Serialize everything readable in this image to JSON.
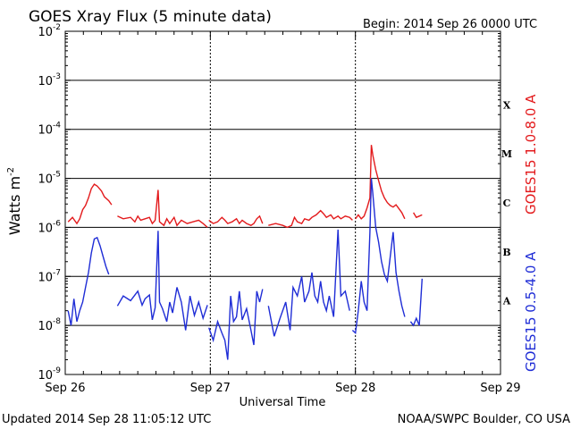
{
  "title": "GOES Xray Flux (5 minute data)",
  "begin_label": "Begin:  2014 Sep 26 0000 UTC",
  "updated_label": "Updated 2014 Sep 28 11:05:12 UTC",
  "credit_label": "NOAA/SWPC Boulder, CO USA",
  "colors": {
    "long_channel": "#e31a1c",
    "short_channel": "#1f2dd6",
    "grid": "#000000"
  },
  "chart_data": {
    "type": "line",
    "title": "GOES Xray Flux (5 minute data)",
    "xlabel": "Universal Time",
    "ylabel": "Watts m",
    "ylabel_superscript": "-2",
    "yscale": "log",
    "ylim": [
      1e-09,
      0.01
    ],
    "xlim": [
      "2014-09-26T00:00Z",
      "2014-09-29T00:00Z"
    ],
    "x_ticks": [
      "Sep 26",
      "Sep 27",
      "Sep 28",
      "Sep 29"
    ],
    "y_ticks": [
      {
        "base": "10",
        "exp": "-2"
      },
      {
        "base": "10",
        "exp": "-3"
      },
      {
        "base": "10",
        "exp": "-4"
      },
      {
        "base": "10",
        "exp": "-5"
      },
      {
        "base": "10",
        "exp": "-6"
      },
      {
        "base": "10",
        "exp": "-7"
      },
      {
        "base": "10",
        "exp": "-8"
      },
      {
        "base": "10",
        "exp": "-9"
      }
    ],
    "flare_classes": [
      {
        "label": "X",
        "flux": 0.000316
      },
      {
        "label": "M",
        "flux": 3.16e-05
      },
      {
        "label": "C",
        "flux": 3.16e-06
      },
      {
        "label": "B",
        "flux": 3.16e-07
      },
      {
        "label": "A",
        "flux": 3.16e-08
      }
    ],
    "gridlines_y": [
      0.001,
      0.0001,
      1e-05,
      1e-06,
      1e-07,
      1e-08
    ],
    "gridlines_x_dotted": [
      "Sep 27",
      "Sep 28"
    ],
    "series": [
      {
        "name": "GOES15 1.0-8.0 A",
        "color": "#e31a1c",
        "segments": [
          [
            [
              0.02,
              1.3e-06
            ],
            [
              0.05,
              1.6e-06
            ],
            [
              0.08,
              1.2e-06
            ],
            [
              0.1,
              1.5e-06
            ],
            [
              0.12,
              2.3e-06
            ],
            [
              0.14,
              2.8e-06
            ],
            [
              0.16,
              4e-06
            ],
            [
              0.18,
              6.2e-06
            ],
            [
              0.2,
              7.6e-06
            ],
            [
              0.22,
              7e-06
            ],
            [
              0.25,
              5.5e-06
            ],
            [
              0.27,
              4.2e-06
            ],
            [
              0.3,
              3.5e-06
            ],
            [
              0.32,
              2.9e-06
            ]
          ],
          [
            [
              0.36,
              1.7e-06
            ],
            [
              0.4,
              1.5e-06
            ],
            [
              0.45,
              1.6e-06
            ],
            [
              0.48,
              1.3e-06
            ],
            [
              0.5,
              1.7e-06
            ],
            [
              0.52,
              1.4e-06
            ],
            [
              0.55,
              1.5e-06
            ],
            [
              0.58,
              1.6e-06
            ],
            [
              0.6,
              1.2e-06
            ],
            [
              0.62,
              1.4e-06
            ],
            [
              0.64,
              5.8e-06
            ],
            [
              0.65,
              1.3e-06
            ],
            [
              0.68,
              1.1e-06
            ],
            [
              0.7,
              1.5e-06
            ],
            [
              0.72,
              1.2e-06
            ],
            [
              0.75,
              1.6e-06
            ],
            [
              0.77,
              1.1e-06
            ],
            [
              0.8,
              1.4e-06
            ],
            [
              0.84,
              1.2e-06
            ],
            [
              0.88,
              1.3e-06
            ],
            [
              0.92,
              1.4e-06
            ],
            [
              0.95,
              1.2e-06
            ],
            [
              0.98,
              1e-06
            ]
          ],
          [
            [
              0.99,
              1.4e-06
            ],
            [
              1.02,
              1.2e-06
            ],
            [
              1.05,
              1.3e-06
            ],
            [
              1.08,
              1.6e-06
            ],
            [
              1.1,
              1.4e-06
            ],
            [
              1.12,
              1.2e-06
            ],
            [
              1.15,
              1.3e-06
            ],
            [
              1.18,
              1.5e-06
            ],
            [
              1.2,
              1.2e-06
            ],
            [
              1.22,
              1.4e-06
            ],
            [
              1.25,
              1.2e-06
            ],
            [
              1.28,
              1.1e-06
            ],
            [
              1.3,
              1.2e-06
            ],
            [
              1.32,
              1.5e-06
            ],
            [
              1.34,
              1.7e-06
            ],
            [
              1.36,
              1.2e-06
            ]
          ],
          [
            [
              1.4,
              1.1e-06
            ],
            [
              1.45,
              1.2e-06
            ],
            [
              1.5,
              1.1e-06
            ],
            [
              1.53,
              1e-06
            ],
            [
              1.56,
              1.1e-06
            ],
            [
              1.58,
              1.6e-06
            ],
            [
              1.6,
              1.3e-06
            ],
            [
              1.63,
              1.2e-06
            ],
            [
              1.65,
              1.5e-06
            ],
            [
              1.68,
              1.4e-06
            ],
            [
              1.7,
              1.6e-06
            ],
            [
              1.73,
              1.8e-06
            ],
            [
              1.76,
              2.2e-06
            ],
            [
              1.78,
              1.9e-06
            ],
            [
              1.8,
              1.6e-06
            ],
            [
              1.83,
              1.8e-06
            ],
            [
              1.85,
              1.5e-06
            ],
            [
              1.88,
              1.7e-06
            ],
            [
              1.9,
              1.5e-06
            ],
            [
              1.93,
              1.7e-06
            ],
            [
              1.96,
              1.6e-06
            ],
            [
              1.98,
              1.4e-06
            ]
          ],
          [
            [
              2.0,
              1.5e-06
            ],
            [
              2.02,
              1.8e-06
            ],
            [
              2.04,
              1.5e-06
            ],
            [
              2.06,
              1.7e-06
            ],
            [
              2.08,
              2.5e-06
            ],
            [
              2.1,
              4e-06
            ],
            [
              2.11,
              4.8e-05
            ],
            [
              2.12,
              3e-05
            ],
            [
              2.14,
              1.5e-05
            ],
            [
              2.16,
              9e-06
            ],
            [
              2.18,
              5.5e-06
            ],
            [
              2.2,
              4e-06
            ],
            [
              2.22,
              3.2e-06
            ],
            [
              2.24,
              2.8e-06
            ],
            [
              2.26,
              2.6e-06
            ],
            [
              2.28,
              2.9e-06
            ],
            [
              2.3,
              2.4e-06
            ],
            [
              2.32,
              2e-06
            ],
            [
              2.34,
              1.5e-06
            ]
          ],
          [
            [
              2.4,
              2e-06
            ],
            [
              2.42,
              1.6e-06
            ],
            [
              2.44,
              1.7e-06
            ],
            [
              2.46,
              1.8e-06
            ]
          ]
        ]
      },
      {
        "name": "GOES15 0.5-4.0 A",
        "color": "#1f2dd6",
        "segments": [
          [
            [
              0.02,
              2e-08
            ],
            [
              0.04,
              1e-08
            ],
            [
              0.06,
              3.5e-08
            ],
            [
              0.08,
              1.2e-08
            ],
            [
              0.1,
              2e-08
            ],
            [
              0.12,
              3e-08
            ],
            [
              0.14,
              6e-08
            ],
            [
              0.16,
              1.2e-07
            ],
            [
              0.18,
              3e-07
            ],
            [
              0.2,
              5.8e-07
            ],
            [
              0.22,
              6.2e-07
            ],
            [
              0.24,
              4.2e-07
            ],
            [
              0.26,
              2.6e-07
            ],
            [
              0.28,
              1.6e-07
            ],
            [
              0.3,
              1.1e-07
            ]
          ],
          [
            [
              0.36,
              2.5e-08
            ],
            [
              0.4,
              4e-08
            ],
            [
              0.45,
              3.2e-08
            ],
            [
              0.5,
              5e-08
            ],
            [
              0.53,
              2.6e-08
            ],
            [
              0.55,
              3.5e-08
            ],
            [
              0.58,
              4.2e-08
            ],
            [
              0.6,
              1.3e-08
            ],
            [
              0.62,
              2.3e-08
            ],
            [
              0.64,
              8.5e-07
            ],
            [
              0.65,
              3e-08
            ],
            [
              0.67,
              2.2e-08
            ],
            [
              0.7,
              1.2e-08
            ],
            [
              0.72,
              3e-08
            ],
            [
              0.74,
              1.8e-08
            ],
            [
              0.77,
              6e-08
            ],
            [
              0.8,
              3e-08
            ],
            [
              0.83,
              8e-09
            ],
            [
              0.86,
              4e-08
            ],
            [
              0.89,
              1.6e-08
            ],
            [
              0.92,
              3e-08
            ],
            [
              0.95,
              1.4e-08
            ],
            [
              0.98,
              2.6e-08
            ]
          ],
          [
            [
              0.99,
              9e-09
            ],
            [
              1.02,
              5e-09
            ],
            [
              1.05,
              1.2e-08
            ],
            [
              1.08,
              7e-09
            ],
            [
              1.1,
              5e-09
            ],
            [
              1.12,
              2e-09
            ],
            [
              1.14,
              4e-08
            ],
            [
              1.16,
              1.2e-08
            ],
            [
              1.18,
              1.5e-08
            ],
            [
              1.2,
              5e-08
            ],
            [
              1.22,
              1.3e-08
            ],
            [
              1.25,
              2.2e-08
            ],
            [
              1.28,
              8e-09
            ],
            [
              1.3,
              4e-09
            ],
            [
              1.32,
              5e-08
            ],
            [
              1.34,
              3e-08
            ],
            [
              1.36,
              5.5e-08
            ]
          ],
          [
            [
              1.4,
              2.5e-08
            ],
            [
              1.44,
              6e-09
            ],
            [
              1.48,
              1.4e-08
            ],
            [
              1.52,
              3e-08
            ],
            [
              1.55,
              8e-09
            ],
            [
              1.57,
              6e-08
            ],
            [
              1.6,
              4e-08
            ],
            [
              1.63,
              1e-07
            ],
            [
              1.65,
              3e-08
            ],
            [
              1.68,
              5e-08
            ],
            [
              1.7,
              1.2e-07
            ],
            [
              1.72,
              4e-08
            ],
            [
              1.74,
              3e-08
            ],
            [
              1.76,
              8e-08
            ],
            [
              1.78,
              3e-08
            ],
            [
              1.8,
              2e-08
            ],
            [
              1.82,
              4e-08
            ],
            [
              1.85,
              1.5e-08
            ],
            [
              1.88,
              9e-07
            ],
            [
              1.9,
              4e-08
            ],
            [
              1.93,
              5e-08
            ],
            [
              1.96,
              2e-08
            ]
          ],
          [
            [
              1.98,
              8e-09
            ],
            [
              2.0,
              7e-09
            ],
            [
              2.02,
              2e-08
            ],
            [
              2.04,
              8e-08
            ],
            [
              2.06,
              3e-08
            ],
            [
              2.08,
              2e-08
            ],
            [
              2.09,
              1.3e-07
            ],
            [
              2.1,
              8e-07
            ],
            [
              2.11,
              1e-05
            ],
            [
              2.12,
              5e-06
            ],
            [
              2.14,
              1e-06
            ],
            [
              2.16,
              5e-07
            ],
            [
              2.18,
              2e-07
            ],
            [
              2.2,
              1.1e-07
            ],
            [
              2.22,
              8e-08
            ],
            [
              2.24,
              2.5e-07
            ],
            [
              2.26,
              8e-07
            ],
            [
              2.28,
              1.2e-07
            ],
            [
              2.3,
              5e-08
            ],
            [
              2.32,
              2.5e-08
            ],
            [
              2.34,
              1.5e-08
            ]
          ],
          [
            [
              2.38,
              1.2e-08
            ],
            [
              2.4,
              1e-08
            ],
            [
              2.42,
              1.4e-08
            ],
            [
              2.44,
              1e-08
            ],
            [
              2.46,
              9e-08
            ]
          ]
        ]
      }
    ]
  }
}
